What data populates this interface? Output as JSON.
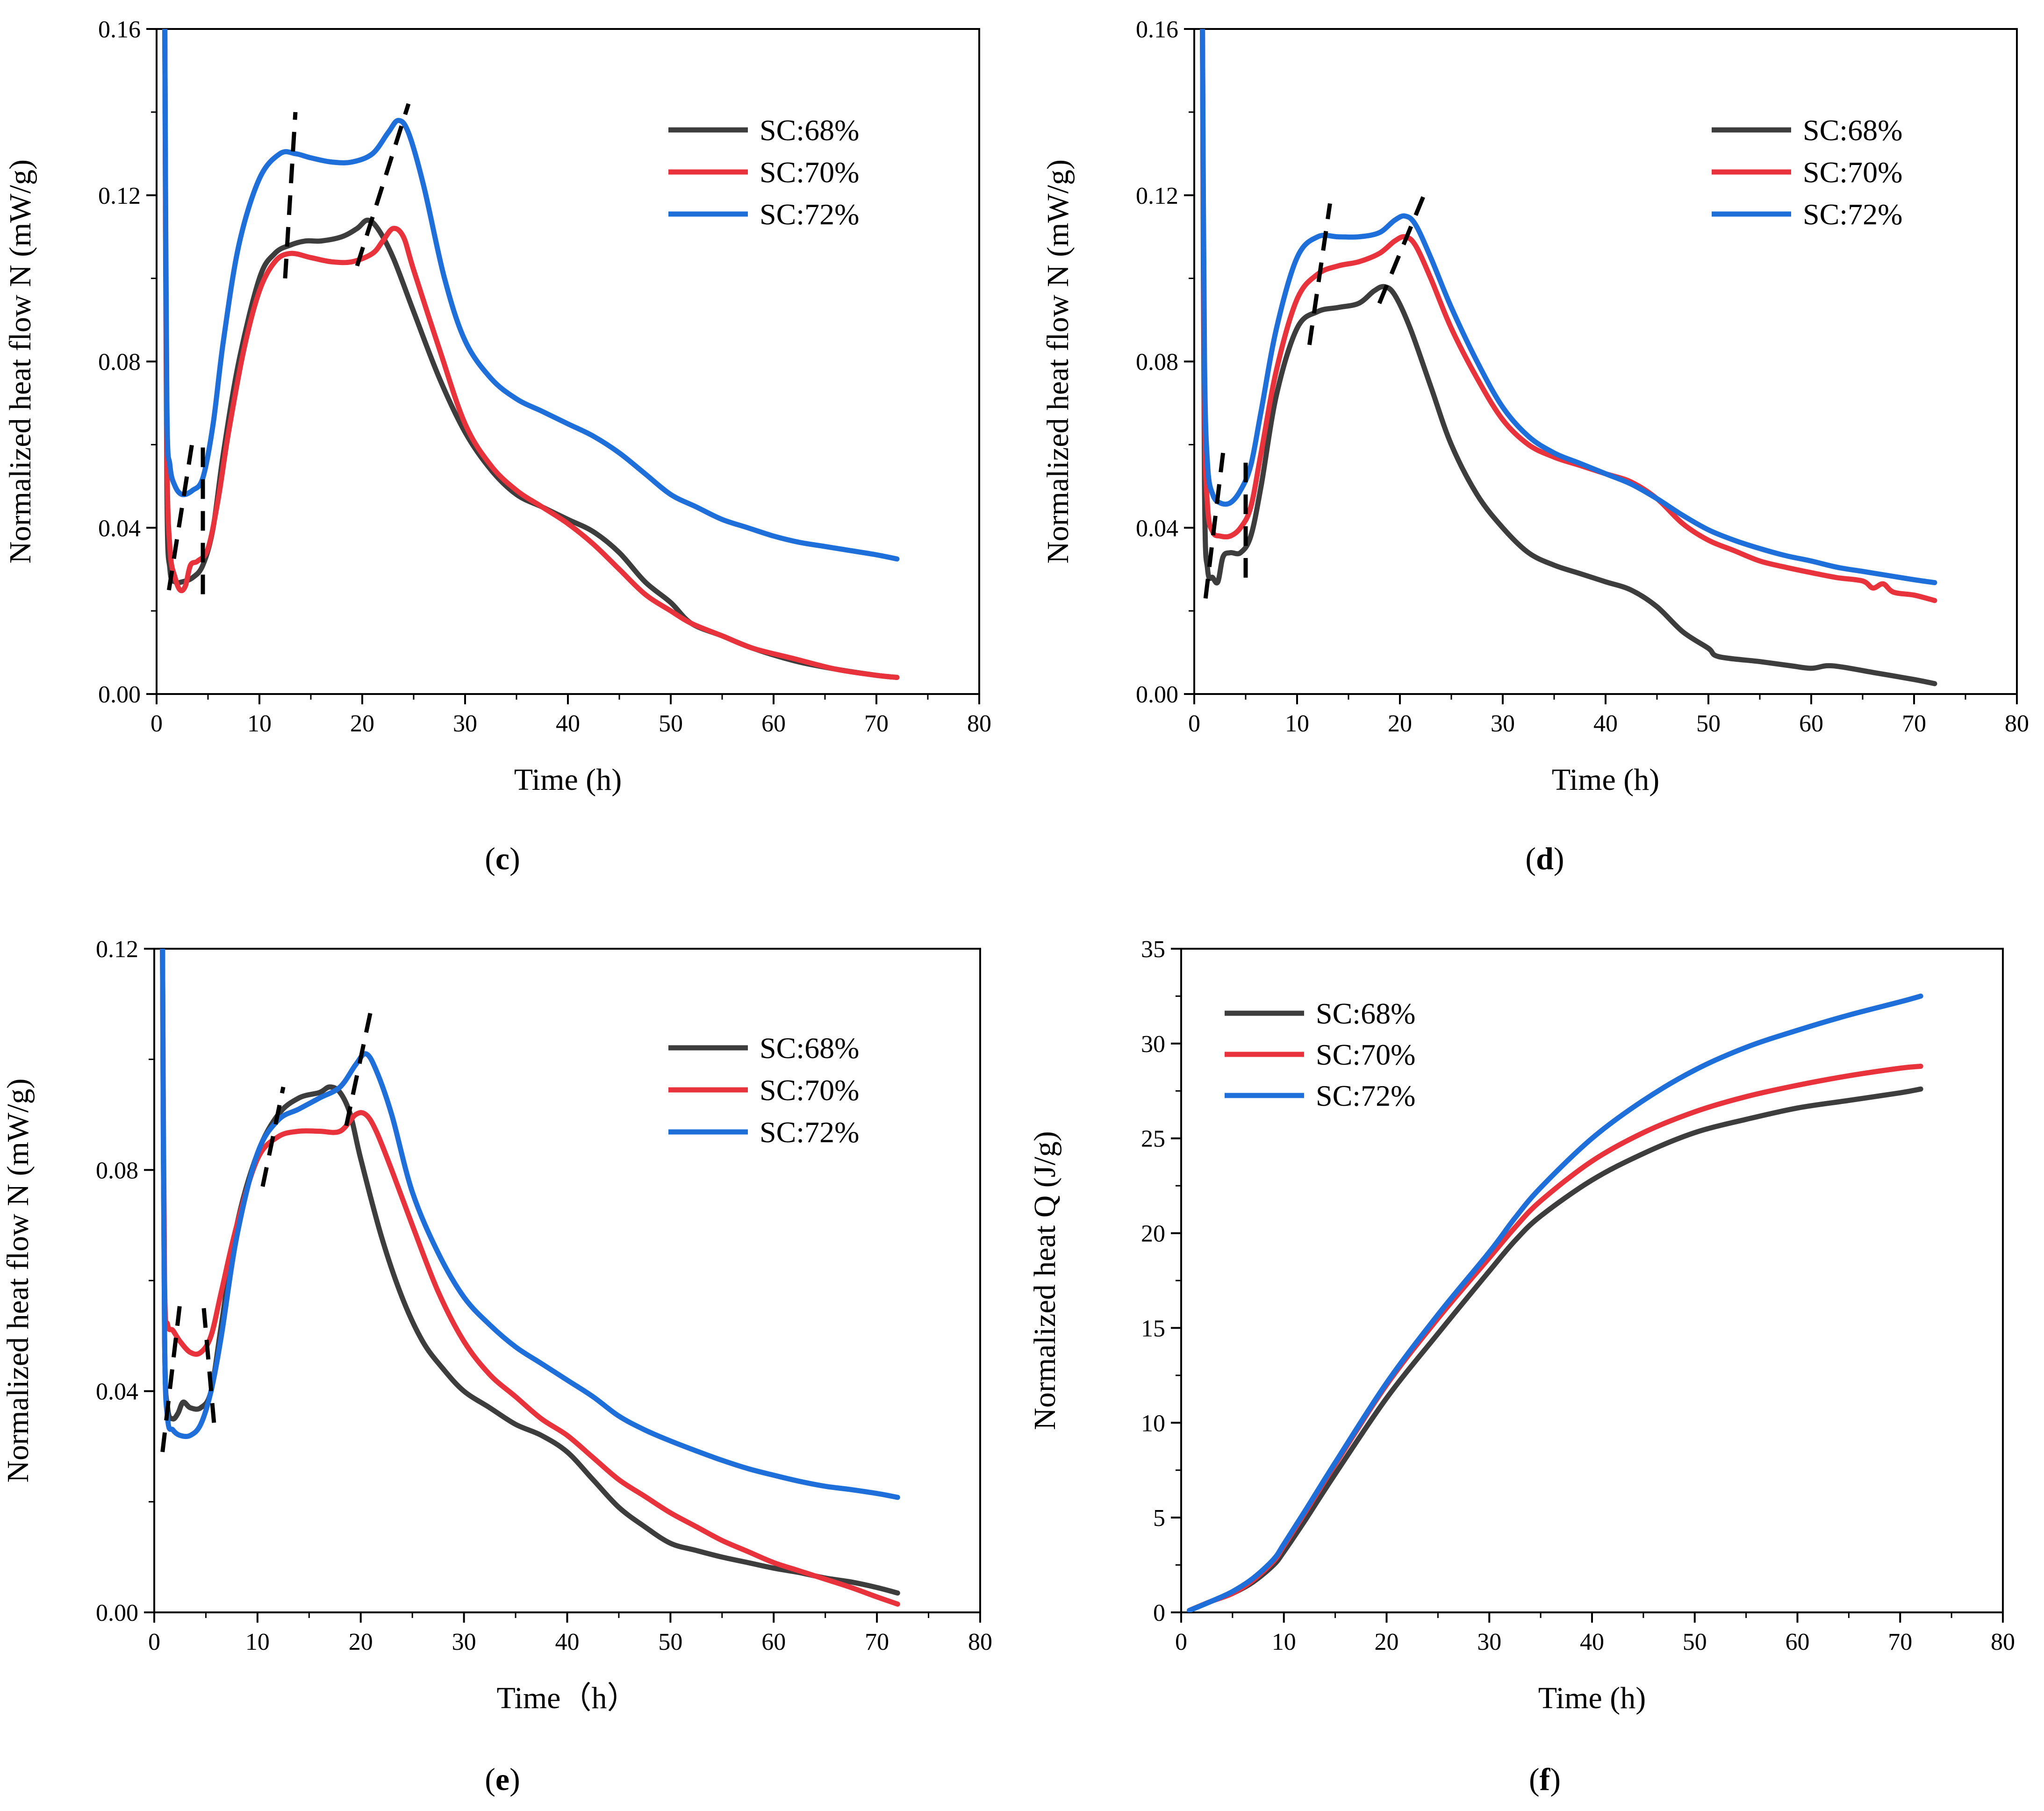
{
  "chart_data": [
    {
      "panel": "c",
      "type": "line",
      "caption_label": "(c)",
      "caption_letter": "c",
      "title": "",
      "xlabel": "Time (h)",
      "ylabel": "Normalized heat flow N (mW/g)",
      "xlim": [
        0,
        80
      ],
      "ylim": [
        0,
        0.16
      ],
      "xticks": [
        "0",
        "10",
        "20",
        "30",
        "40",
        "50",
        "60",
        "70",
        "80"
      ],
      "yticks": [
        "0.00",
        "0.04",
        "0.08",
        "0.12",
        "0.16"
      ],
      "legend_position": "top-right",
      "legend": [
        "SC:68%",
        "SC:70%",
        "SC:72%"
      ],
      "colors": [
        "#3d3d3d",
        "#e8323c",
        "#1e6fd9"
      ],
      "series": [
        {
          "name": "SC:68%",
          "x": [
            0.8,
            1.0,
            1.3,
            1.8,
            2.5,
            3.5,
            4.5,
            5.5,
            6.5,
            8,
            10,
            11.5,
            13,
            14.5,
            16,
            18,
            19.5,
            20.5,
            21.5,
            23,
            25,
            27.5,
            30,
            32.5,
            35,
            37.5,
            40,
            42.5,
            45,
            47.5,
            50,
            52,
            55,
            58,
            62,
            66,
            70,
            72
          ],
          "y": [
            0.16,
            0.05,
            0.03,
            0.027,
            0.027,
            0.028,
            0.031,
            0.04,
            0.058,
            0.08,
            0.1,
            0.106,
            0.108,
            0.109,
            0.109,
            0.11,
            0.112,
            0.114,
            0.112,
            0.105,
            0.092,
            0.076,
            0.063,
            0.054,
            0.048,
            0.045,
            0.042,
            0.039,
            0.034,
            0.027,
            0.022,
            0.017,
            0.014,
            0.011,
            0.008,
            0.006,
            0.0045,
            0.004
          ]
        },
        {
          "name": "SC:70%",
          "x": [
            0.8,
            1.0,
            1.3,
            1.8,
            2.3,
            2.8,
            3.3,
            4.0,
            5.0,
            6.0,
            7.0,
            8.5,
            10,
            11.5,
            13,
            15,
            17,
            19,
            21,
            22,
            23,
            24,
            25,
            27.5,
            30,
            32.5,
            35,
            37.5,
            40,
            42.5,
            45,
            47.5,
            50,
            52,
            55,
            58,
            62,
            66,
            70,
            72
          ],
          "y": [
            0.16,
            0.06,
            0.035,
            0.028,
            0.025,
            0.026,
            0.031,
            0.032,
            0.035,
            0.047,
            0.063,
            0.083,
            0.097,
            0.104,
            0.106,
            0.105,
            0.104,
            0.104,
            0.106,
            0.109,
            0.112,
            0.11,
            0.102,
            0.083,
            0.065,
            0.055,
            0.049,
            0.045,
            0.041,
            0.036,
            0.03,
            0.024,
            0.02,
            0.017,
            0.014,
            0.011,
            0.0085,
            0.006,
            0.0045,
            0.004
          ]
        },
        {
          "name": "SC:72%",
          "x": [
            0.8,
            1.0,
            1.3,
            1.8,
            2.5,
            3.5,
            4.5,
            5.5,
            6.5,
            8,
            10,
            12,
            13.5,
            15,
            17,
            19,
            21,
            22.5,
            23.5,
            24.5,
            26,
            28,
            30,
            32.5,
            35,
            37.5,
            40,
            42.5,
            45,
            47.5,
            50,
            52.5,
            55,
            57.5,
            60,
            62.5,
            65,
            67.5,
            70,
            72
          ],
          "y": [
            0.16,
            0.07,
            0.055,
            0.05,
            0.048,
            0.049,
            0.052,
            0.065,
            0.085,
            0.108,
            0.124,
            0.13,
            0.13,
            0.129,
            0.128,
            0.128,
            0.13,
            0.135,
            0.138,
            0.135,
            0.122,
            0.1,
            0.085,
            0.076,
            0.071,
            0.068,
            0.065,
            0.062,
            0.058,
            0.053,
            0.048,
            0.045,
            0.042,
            0.04,
            0.038,
            0.0365,
            0.0355,
            0.0345,
            0.0335,
            0.0325
          ]
        }
      ]
    },
    {
      "panel": "d",
      "type": "line",
      "caption_label": "(d)",
      "caption_letter": "d",
      "title": "",
      "xlabel": "Time (h)",
      "ylabel": "Normalized heat flow N (mW/g)",
      "xlim": [
        0,
        80
      ],
      "ylim": [
        0,
        0.16
      ],
      "xticks": [
        "0",
        "10",
        "20",
        "30",
        "40",
        "50",
        "60",
        "70",
        "80"
      ],
      "yticks": [
        "0.00",
        "0.04",
        "0.08",
        "0.12",
        "0.16"
      ],
      "legend_position": "top-right",
      "legend": [
        "SC:68%",
        "SC:70%",
        "SC:72%"
      ],
      "colors": [
        "#3d3d3d",
        "#e8323c",
        "#1e6fd9"
      ],
      "series": [
        {
          "name": "SC:68%",
          "x": [
            0.8,
            1.0,
            1.3,
            1.8,
            2.3,
            2.8,
            3.5,
            4.5,
            5.5,
            6.5,
            8,
            10,
            12,
            14,
            16,
            17.5,
            18.5,
            19.5,
            21,
            23,
            25,
            27.5,
            30,
            32.5,
            35,
            37.5,
            40,
            42.5,
            45,
            47.5,
            50,
            51,
            55,
            58,
            60,
            61.5,
            63,
            66,
            70,
            72
          ],
          "y": [
            0.16,
            0.05,
            0.03,
            0.028,
            0.027,
            0.033,
            0.034,
            0.034,
            0.038,
            0.05,
            0.072,
            0.088,
            0.092,
            0.093,
            0.094,
            0.097,
            0.098,
            0.096,
            0.088,
            0.074,
            0.06,
            0.048,
            0.04,
            0.034,
            0.031,
            0.029,
            0.027,
            0.025,
            0.021,
            0.015,
            0.011,
            0.009,
            0.0078,
            0.0068,
            0.0062,
            0.0068,
            0.0065,
            0.0052,
            0.0035,
            0.0025
          ]
        },
        {
          "name": "SC:70%",
          "x": [
            0.8,
            1.0,
            1.3,
            1.8,
            2.5,
            3.5,
            4.5,
            5.5,
            6.5,
            8,
            10,
            12,
            14,
            16,
            18,
            19.5,
            20.5,
            21.5,
            23,
            25,
            27.5,
            30,
            32.5,
            35,
            37.5,
            40,
            42.5,
            45,
            47.5,
            50,
            52.5,
            55,
            57.5,
            60,
            62.5,
            65,
            66,
            67,
            68,
            70,
            72
          ],
          "y": [
            0.16,
            0.07,
            0.045,
            0.039,
            0.038,
            0.038,
            0.04,
            0.045,
            0.058,
            0.078,
            0.095,
            0.101,
            0.103,
            0.104,
            0.106,
            0.109,
            0.11,
            0.108,
            0.1,
            0.088,
            0.076,
            0.066,
            0.06,
            0.057,
            0.055,
            0.053,
            0.051,
            0.047,
            0.041,
            0.037,
            0.0345,
            0.032,
            0.0305,
            0.0292,
            0.028,
            0.0272,
            0.0255,
            0.0265,
            0.0245,
            0.0238,
            0.0225
          ]
        },
        {
          "name": "SC:72%",
          "x": [
            0.8,
            1.0,
            1.3,
            1.8,
            2.5,
            3.5,
            4.5,
            5.5,
            6.5,
            8,
            10,
            12,
            14,
            16,
            18,
            19.5,
            20.5,
            21.5,
            23,
            25,
            27.5,
            30,
            32.5,
            35,
            37.5,
            40,
            42.5,
            45,
            47.5,
            50,
            52.5,
            55,
            57.5,
            60,
            62.5,
            65,
            67.5,
            70,
            72
          ],
          "y": [
            0.16,
            0.08,
            0.055,
            0.048,
            0.046,
            0.046,
            0.049,
            0.055,
            0.068,
            0.088,
            0.105,
            0.11,
            0.11,
            0.11,
            0.111,
            0.114,
            0.115,
            0.113,
            0.105,
            0.093,
            0.08,
            0.069,
            0.062,
            0.058,
            0.0555,
            0.053,
            0.0505,
            0.047,
            0.043,
            0.0395,
            0.037,
            0.035,
            0.0333,
            0.032,
            0.0305,
            0.0295,
            0.0285,
            0.0275,
            0.0268
          ]
        }
      ]
    },
    {
      "panel": "e",
      "type": "line",
      "caption_label": "(e)",
      "caption_letter": "e",
      "title": "",
      "xlabel": "Time（h）",
      "ylabel": "Normalized heat flow N (mW/g)",
      "xlim": [
        0,
        80
      ],
      "ylim": [
        0,
        0.12
      ],
      "xticks": [
        "0",
        "10",
        "20",
        "30",
        "40",
        "50",
        "60",
        "70",
        "80"
      ],
      "yticks": [
        "0.00",
        "0.04",
        "0.08",
        "0.12"
      ],
      "legend_position": "top-right",
      "legend": [
        "SC:68%",
        "SC:70%",
        "SC:72%"
      ],
      "colors": [
        "#3d3d3d",
        "#e8323c",
        "#1e6fd9"
      ],
      "series": [
        {
          "name": "SC:68%",
          "x": [
            0.8,
            1.0,
            1.3,
            1.8,
            2.3,
            2.8,
            3.5,
            4.5,
            5.5,
            6.5,
            8,
            10,
            12,
            14,
            16,
            17,
            18,
            19,
            20,
            22,
            24,
            26,
            28,
            30,
            32.5,
            35,
            37.5,
            40,
            42.5,
            45,
            47.5,
            50,
            52.5,
            55,
            57.5,
            60,
            62.5,
            65,
            67.5,
            70,
            72
          ],
          "y": [
            0.12,
            0.05,
            0.037,
            0.035,
            0.036,
            0.038,
            0.037,
            0.037,
            0.04,
            0.052,
            0.07,
            0.083,
            0.09,
            0.093,
            0.094,
            0.095,
            0.094,
            0.09,
            0.082,
            0.068,
            0.057,
            0.049,
            0.044,
            0.04,
            0.037,
            0.034,
            0.032,
            0.029,
            0.024,
            0.019,
            0.0155,
            0.0125,
            0.0112,
            0.01,
            0.009,
            0.008,
            0.0072,
            0.0062,
            0.0055,
            0.0045,
            0.0035
          ]
        },
        {
          "name": "SC:70%",
          "x": [
            0.8,
            1.0,
            1.3,
            1.8,
            2.5,
            3.5,
            4.5,
            5.5,
            6.5,
            8,
            10,
            12,
            14,
            16,
            18,
            19.5,
            20.5,
            21.5,
            23,
            25,
            27.5,
            30,
            32.5,
            35,
            37.5,
            40,
            42.5,
            45,
            47.5,
            50,
            52.5,
            55,
            57.5,
            60,
            62.5,
            65,
            67.5,
            70,
            72
          ],
          "y": [
            0.12,
            0.06,
            0.052,
            0.051,
            0.049,
            0.047,
            0.047,
            0.05,
            0.058,
            0.07,
            0.082,
            0.086,
            0.087,
            0.087,
            0.087,
            0.09,
            0.09,
            0.087,
            0.08,
            0.07,
            0.058,
            0.049,
            0.043,
            0.039,
            0.035,
            0.032,
            0.028,
            0.024,
            0.021,
            0.018,
            0.0155,
            0.013,
            0.011,
            0.009,
            0.0075,
            0.006,
            0.0045,
            0.0028,
            0.0015
          ]
        },
        {
          "name": "SC:72%",
          "x": [
            0.8,
            1.0,
            1.3,
            1.8,
            2.5,
            3.5,
            4.5,
            5.5,
            6.5,
            8,
            10,
            12,
            14,
            16,
            18,
            19.5,
            20.5,
            21.5,
            23,
            25,
            27.5,
            30,
            32.5,
            35,
            37.5,
            40,
            42.5,
            45,
            47.5,
            50,
            52.5,
            55,
            57.5,
            60,
            62.5,
            65,
            67.5,
            70,
            72
          ],
          "y": [
            0.12,
            0.05,
            0.035,
            0.033,
            0.032,
            0.032,
            0.034,
            0.04,
            0.05,
            0.068,
            0.083,
            0.089,
            0.091,
            0.093,
            0.095,
            0.099,
            0.101,
            0.098,
            0.09,
            0.076,
            0.065,
            0.057,
            0.052,
            0.048,
            0.045,
            0.042,
            0.039,
            0.0355,
            0.033,
            0.031,
            0.0292,
            0.0275,
            0.026,
            0.0248,
            0.0237,
            0.0228,
            0.0222,
            0.0215,
            0.0208
          ]
        }
      ]
    },
    {
      "panel": "f",
      "type": "line",
      "caption_label": "(f)",
      "caption_letter": "f",
      "title": "",
      "xlabel": "Time (h)",
      "ylabel": "Normalized heat Q (J/g)",
      "xlim": [
        0,
        80
      ],
      "ylim": [
        0,
        35
      ],
      "xticks": [
        "0",
        "10",
        "20",
        "30",
        "40",
        "50",
        "60",
        "70",
        "80"
      ],
      "yticks": [
        "0",
        "5",
        "10",
        "15",
        "20",
        "25",
        "30",
        "35"
      ],
      "legend_position": "top-left",
      "legend": [
        "SC:68%",
        "SC:70%",
        "SC:72%"
      ],
      "colors": [
        "#3d3d3d",
        "#e8323c",
        "#1e6fd9"
      ],
      "series": [
        {
          "name": "SC:68%",
          "x": [
            0.8,
            3,
            5,
            7,
            9,
            10,
            12,
            15,
            20,
            25,
            30,
            32.5,
            35,
            40,
            45,
            50,
            55,
            60,
            65,
            70,
            72
          ],
          "y": [
            0.1,
            0.6,
            1.0,
            1.6,
            2.5,
            3.2,
            4.8,
            7.3,
            11.3,
            14.7,
            18.0,
            19.6,
            20.9,
            22.8,
            24.2,
            25.3,
            26.0,
            26.6,
            27.0,
            27.4,
            27.6
          ]
        },
        {
          "name": "SC:70%",
          "x": [
            0.8,
            3,
            5,
            7,
            9,
            10,
            12,
            15,
            20,
            25,
            30,
            32.5,
            35,
            40,
            45,
            50,
            55,
            60,
            65,
            70,
            72
          ],
          "y": [
            0.1,
            0.6,
            1.0,
            1.7,
            2.7,
            3.5,
            5.2,
            7.8,
            12.0,
            15.5,
            18.7,
            20.3,
            21.7,
            23.8,
            25.3,
            26.4,
            27.2,
            27.8,
            28.3,
            28.7,
            28.8
          ]
        },
        {
          "name": "SC:72%",
          "x": [
            0.8,
            3,
            5,
            7,
            9,
            10,
            12,
            15,
            20,
            25,
            30,
            32.5,
            35,
            40,
            45,
            50,
            55,
            60,
            65,
            70,
            72
          ],
          "y": [
            0.1,
            0.6,
            1.1,
            1.8,
            2.8,
            3.6,
            5.3,
            7.9,
            12.1,
            15.7,
            19.0,
            20.8,
            22.4,
            25.0,
            27.0,
            28.6,
            29.8,
            30.7,
            31.5,
            32.2,
            32.5
          ]
        }
      ]
    }
  ]
}
